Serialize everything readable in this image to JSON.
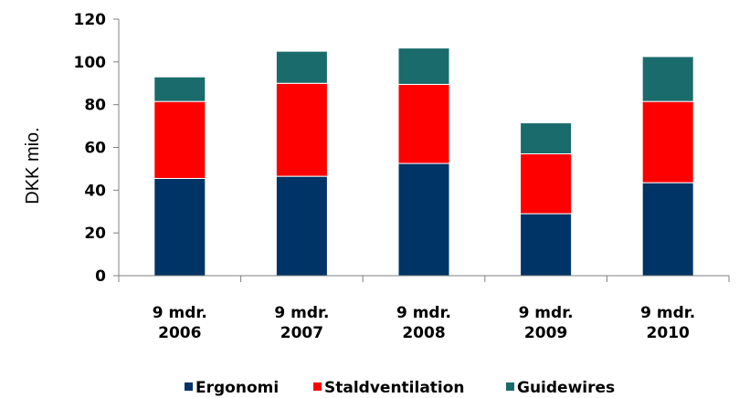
{
  "chart_data": {
    "type": "bar",
    "stacked": true,
    "ylabel": "DKK mio.",
    "xlabel": "",
    "ylim": [
      0,
      120
    ],
    "yticks": [
      0,
      20,
      40,
      60,
      80,
      100,
      120
    ],
    "grid": false,
    "legend_position": "bottom",
    "categories": [
      [
        "9 mdr.",
        "2006"
      ],
      [
        "9 mdr.",
        "2007"
      ],
      [
        "9 mdr.",
        "2008"
      ],
      [
        "9 mdr.",
        "2009"
      ],
      [
        "9 mdr.",
        "2010"
      ]
    ],
    "series": [
      {
        "name": "Ergonomi",
        "color": "#003366",
        "values": [
          45.5,
          46.5,
          52.5,
          29,
          43.5
        ]
      },
      {
        "name": "Staldventilation",
        "color": "#ff0000",
        "values": [
          36,
          43.5,
          37,
          28,
          38
        ]
      },
      {
        "name": "Guidewires",
        "color": "#1a6b6b",
        "values": [
          11.5,
          15,
          17,
          14.5,
          21
        ]
      }
    ]
  }
}
